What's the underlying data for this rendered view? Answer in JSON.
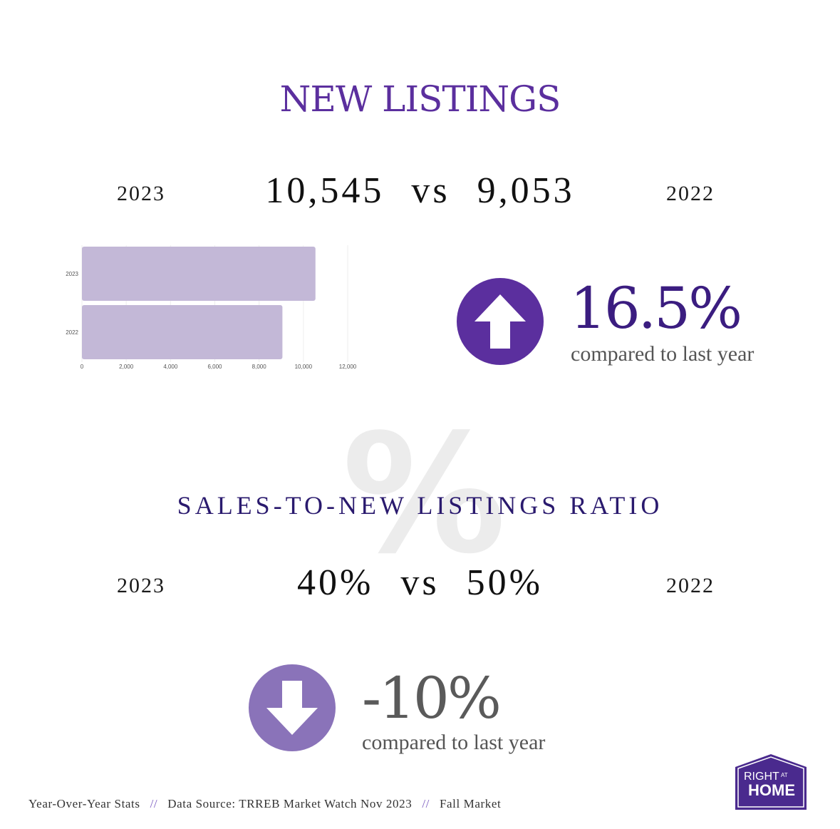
{
  "new_listings": {
    "title": "NEW LISTINGS",
    "year_left": "2023",
    "year_right": "2022",
    "value_left": "10,545",
    "vs": "vs",
    "value_right": "9,053",
    "change": "16.5%",
    "change_caption": "compared to last year",
    "change_direction": "up",
    "change_color": "#5b2f9e"
  },
  "ratio": {
    "watermark": "%",
    "title": "SALES-TO-NEW LISTINGS RATIO",
    "year_left": "2023",
    "year_right": "2022",
    "value_left": "40%",
    "vs": "vs",
    "value_right": "50%",
    "change": "-10%",
    "change_caption": "compared to last year",
    "change_direction": "down",
    "change_color": "#8a73b9"
  },
  "footer": {
    "item1": "Year-Over-Year Stats",
    "sep": "//",
    "item2": "Data Source: TRREB Market Watch Nov 2023",
    "item3": "Fall Market"
  },
  "logo": {
    "line1": "RIGHT",
    "line1_small": "AT",
    "line2": "HOME",
    "color": "#4a2a8e"
  },
  "chart_data": {
    "type": "bar",
    "orientation": "horizontal",
    "categories": [
      "2023",
      "2022"
    ],
    "values": [
      10545,
      9053
    ],
    "xlim": [
      0,
      12000
    ],
    "x_ticks": [
      "0",
      "2,000",
      "4,000",
      "6,000",
      "8,000",
      "10,000",
      "12,000"
    ],
    "bar_color": "#c3b8d7",
    "grid": true
  }
}
